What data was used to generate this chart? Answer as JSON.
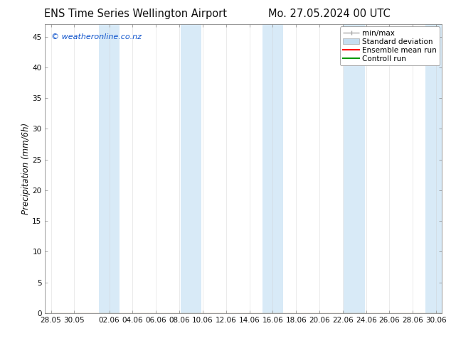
{
  "title": "ENS Time Series Wellington Airport",
  "title2": "Mo. 27.05.2024 00 UTC",
  "ylabel": "Precipitation (mm/6h)",
  "watermark": "© weatheronline.co.nz",
  "watermark_color": "#1155cc",
  "background_color": "#ffffff",
  "plot_bg_color": "#ffffff",
  "ylim": [
    0,
    47
  ],
  "yticks": [
    0,
    5,
    10,
    15,
    20,
    25,
    30,
    35,
    40,
    45
  ],
  "xtick_labels": [
    "28.05",
    "30.05",
    "02.06",
    "04.06",
    "06.06",
    "08.06",
    "10.06",
    "12.06",
    "14.06",
    "16.06",
    "18.06",
    "20.06",
    "22.06",
    "24.06",
    "26.06",
    "28.06",
    "30.06"
  ],
  "xtick_vals": [
    0,
    2,
    5,
    7,
    9,
    11,
    13,
    15,
    17,
    19,
    21,
    23,
    25,
    27,
    29,
    31,
    33
  ],
  "x_min": -0.5,
  "x_max": 33.5,
  "band_centers": [
    5,
    12,
    19,
    26,
    33
  ],
  "band_half": 0.9,
  "band_color": "#d8eaf7",
  "grid_color": "#cccccc",
  "spine_color": "#888888",
  "font_color": "#111111",
  "title_fontsize": 10.5,
  "label_fontsize": 8.5,
  "tick_fontsize": 7.5,
  "legend_fontsize": 7.5,
  "minmax_color": "#aaaaaa",
  "stddev_color": "#c5ddf0",
  "ensemble_color": "#ff0000",
  "control_color": "#009900"
}
